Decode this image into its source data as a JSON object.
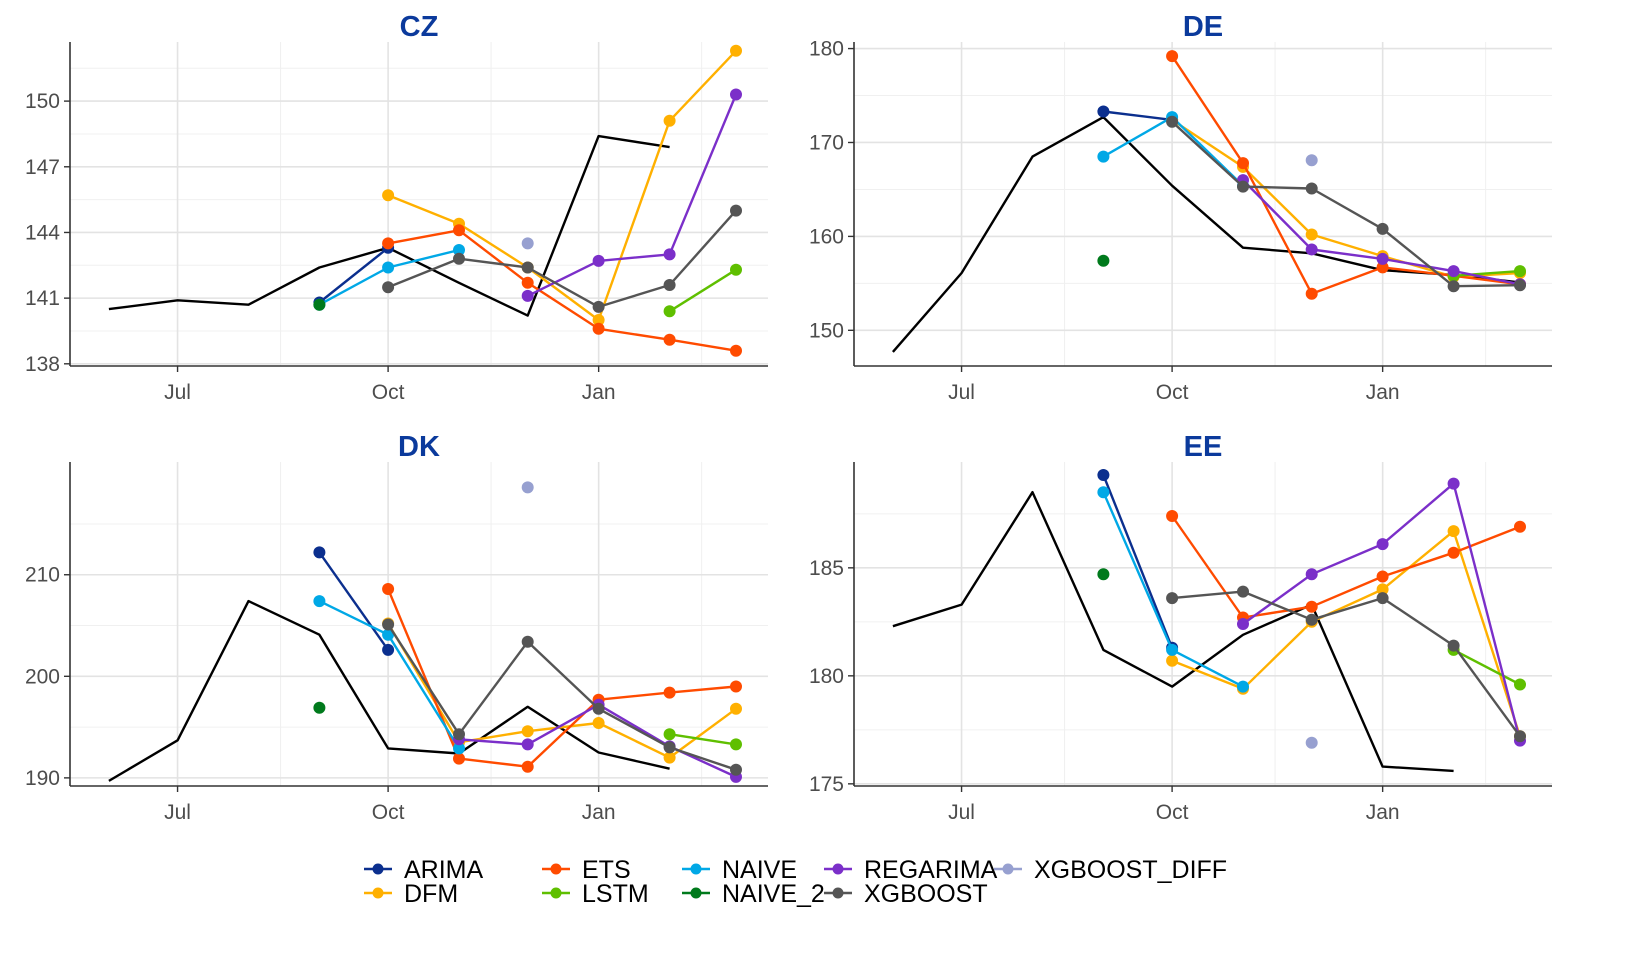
{
  "chart_data": {
    "type": "line",
    "x_axis": {
      "type": "date",
      "range": [
        "2023-05-15",
        "2024-03-15"
      ],
      "ticks": [
        {
          "date": "2023-07-01",
          "label": "Jul"
        },
        {
          "date": "2023-10-01",
          "label": "Oct"
        },
        {
          "date": "2024-01-01",
          "label": "Jan"
        }
      ]
    },
    "grid": true,
    "legend": {
      "position": "bottom",
      "entries": [
        {
          "name": "ARIMA",
          "color": "#0b2f8e"
        },
        {
          "name": "DFM",
          "color": "#ffb000"
        },
        {
          "name": "ETS",
          "color": "#ff4b00"
        },
        {
          "name": "LSTM",
          "color": "#5fbf00"
        },
        {
          "name": "NAIVE",
          "color": "#00a8e6"
        },
        {
          "name": "NAIVE_2",
          "color": "#007a1c"
        },
        {
          "name": "REGARIMA",
          "color": "#7b2fc9"
        },
        {
          "name": "XGBOOST",
          "color": "#555555"
        },
        {
          "name": "XGBOOST_DIFF",
          "color": "#97a0d0"
        }
      ]
    },
    "panels": [
      {
        "title": "CZ",
        "ylim": [
          137.9,
          152.7
        ],
        "yticks": [
          138,
          141,
          144,
          147,
          150
        ],
        "actual": {
          "color": "#000000",
          "x": [
            "2023-06-01",
            "2023-07-01",
            "2023-08-01",
            "2023-09-01",
            "2023-10-01",
            "2023-11-01",
            "2023-12-01",
            "2024-01-01",
            "2024-02-01"
          ],
          "y": [
            140.5,
            140.9,
            140.7,
            142.4,
            143.3,
            141.7,
            140.2,
            148.4,
            147.9
          ]
        },
        "series": [
          {
            "name": "ARIMA",
            "x": [
              "2023-09-01",
              "2023-10-01"
            ],
            "y": [
              140.8,
              143.3
            ]
          },
          {
            "name": "DFM",
            "x": [
              "2023-10-01",
              "2023-11-01",
              "2023-12-01",
              "2024-01-01",
              "2024-02-01",
              "2024-03-01"
            ],
            "y": [
              145.7,
              144.4,
              142.4,
              140.0,
              149.1,
              152.3
            ]
          },
          {
            "name": "ETS",
            "x": [
              "2023-10-01",
              "2023-11-01",
              "2023-12-01",
              "2024-01-01",
              "2024-02-01",
              "2024-03-01"
            ],
            "y": [
              143.5,
              144.1,
              141.7,
              139.6,
              139.1,
              138.6
            ]
          },
          {
            "name": "LSTM",
            "x": [
              "2024-02-01",
              "2024-03-01"
            ],
            "y": [
              140.4,
              142.3
            ]
          },
          {
            "name": "NAIVE",
            "x": [
              "2023-09-01",
              "2023-10-01",
              "2023-11-01"
            ],
            "y": [
              140.7,
              142.4,
              143.2
            ]
          },
          {
            "name": "NAIVE_2",
            "x": [
              "2023-09-01"
            ],
            "y": [
              140.7
            ]
          },
          {
            "name": "REGARIMA",
            "x": [
              "2023-12-01",
              "2024-01-01",
              "2024-02-01",
              "2024-03-01"
            ],
            "y": [
              141.1,
              142.7,
              143.0,
              150.3
            ]
          },
          {
            "name": "XGBOOST",
            "x": [
              "2023-10-01",
              "2023-11-01",
              "2023-12-01",
              "2024-01-01",
              "2024-02-01",
              "2024-03-01"
            ],
            "y": [
              141.5,
              142.8,
              142.4,
              140.6,
              141.6,
              145.0
            ]
          },
          {
            "name": "XGBOOST_DIFF",
            "x": [
              "2023-12-01"
            ],
            "y": [
              143.5
            ]
          }
        ]
      },
      {
        "title": "DE",
        "ylim": [
          146.2,
          180.7
        ],
        "yticks": [
          150,
          160,
          170,
          180
        ],
        "actual": {
          "color": "#000000",
          "x": [
            "2023-06-01",
            "2023-07-01",
            "2023-08-01",
            "2023-09-01",
            "2023-10-01",
            "2023-11-01",
            "2023-12-01",
            "2024-01-01",
            "2024-02-01",
            "2024-03-01"
          ],
          "y": [
            147.7,
            156.1,
            168.5,
            172.7,
            165.4,
            158.8,
            158.2,
            156.4,
            155.9,
            155.1
          ]
        },
        "series": [
          {
            "name": "ARIMA",
            "x": [
              "2023-09-01",
              "2023-10-01"
            ],
            "y": [
              173.3,
              172.4
            ]
          },
          {
            "name": "DFM",
            "x": [
              "2023-10-01",
              "2023-11-01",
              "2023-12-01",
              "2024-01-01",
              "2024-02-01",
              "2024-03-01"
            ],
            "y": [
              172.4,
              167.4,
              160.2,
              157.9,
              155.7,
              156.1
            ]
          },
          {
            "name": "ETS",
            "x": [
              "2023-10-01",
              "2023-11-01",
              "2023-12-01",
              "2024-01-01",
              "2024-02-01",
              "2024-03-01"
            ],
            "y": [
              179.2,
              167.8,
              153.9,
              156.7,
              155.8,
              154.9
            ]
          },
          {
            "name": "LSTM",
            "x": [
              "2024-02-01",
              "2024-03-01"
            ],
            "y": [
              155.8,
              156.3
            ]
          },
          {
            "name": "NAIVE",
            "x": [
              "2023-09-01",
              "2023-10-01",
              "2023-11-01"
            ],
            "y": [
              168.5,
              172.7,
              165.4
            ]
          },
          {
            "name": "NAIVE_2",
            "x": [
              "2023-09-01"
            ],
            "y": [
              157.4
            ]
          },
          {
            "name": "REGARIMA",
            "x": [
              "2023-11-01",
              "2023-12-01",
              "2024-01-01",
              "2024-02-01",
              "2024-03-01"
            ],
            "y": [
              166.0,
              158.6,
              157.6,
              156.3,
              154.9
            ]
          },
          {
            "name": "XGBOOST",
            "x": [
              "2023-10-01",
              "2023-11-01",
              "2023-12-01",
              "2024-01-01",
              "2024-02-01",
              "2024-03-01"
            ],
            "y": [
              172.2,
              165.3,
              165.1,
              160.8,
              154.7,
              154.8
            ]
          },
          {
            "name": "XGBOOST_DIFF",
            "x": [
              "2023-12-01"
            ],
            "y": [
              168.1
            ]
          }
        ]
      },
      {
        "title": "DK",
        "ylim": [
          189.2,
          221.1
        ],
        "yticks": [
          190,
          200,
          210
        ],
        "actual": {
          "color": "#000000",
          "x": [
            "2023-06-01",
            "2023-07-01",
            "2023-08-01",
            "2023-09-01",
            "2023-10-01",
            "2023-11-01",
            "2023-12-01",
            "2024-01-01",
            "2024-02-01"
          ],
          "y": [
            189.7,
            193.7,
            207.4,
            204.1,
            192.9,
            192.4,
            197.0,
            192.5,
            190.9
          ]
        },
        "series": [
          {
            "name": "ARIMA",
            "x": [
              "2023-09-01",
              "2023-10-01"
            ],
            "y": [
              212.2,
              202.6
            ]
          },
          {
            "name": "DFM",
            "x": [
              "2023-10-01",
              "2023-11-01",
              "2023-12-01",
              "2024-01-01",
              "2024-02-01",
              "2024-03-01"
            ],
            "y": [
              205.2,
              193.5,
              194.6,
              195.4,
              192.0,
              196.8
            ]
          },
          {
            "name": "ETS",
            "x": [
              "2023-10-01",
              "2023-11-01",
              "2023-12-01",
              "2024-01-01",
              "2024-02-01",
              "2024-03-01"
            ],
            "y": [
              208.6,
              191.9,
              191.1,
              197.7,
              198.4,
              199.0
            ]
          },
          {
            "name": "LSTM",
            "x": [
              "2024-02-01",
              "2024-03-01"
            ],
            "y": [
              194.3,
              193.3
            ]
          },
          {
            "name": "NAIVE",
            "x": [
              "2023-09-01",
              "2023-10-01",
              "2023-11-01"
            ],
            "y": [
              207.4,
              204.1,
              192.9
            ]
          },
          {
            "name": "NAIVE_2",
            "x": [
              "2023-09-01"
            ],
            "y": [
              196.9
            ]
          },
          {
            "name": "REGARIMA",
            "x": [
              "2023-11-01",
              "2023-12-01",
              "2024-01-01",
              "2024-02-01",
              "2024-03-01"
            ],
            "y": [
              193.8,
              193.3,
              197.2,
              193.1,
              190.1
            ]
          },
          {
            "name": "XGBOOST",
            "x": [
              "2023-10-01",
              "2023-11-01",
              "2023-12-01",
              "2024-01-01",
              "2024-02-01",
              "2024-03-01"
            ],
            "y": [
              205.1,
              194.3,
              203.4,
              196.8,
              193.0,
              190.8
            ]
          },
          {
            "name": "XGBOOST_DIFF",
            "x": [
              "2023-12-01"
            ],
            "y": [
              218.6
            ]
          }
        ]
      },
      {
        "title": "EE",
        "ylim": [
          174.9,
          189.9
        ],
        "yticks": [
          175,
          180,
          185
        ],
        "actual": {
          "color": "#000000",
          "x": [
            "2023-06-01",
            "2023-07-01",
            "2023-08-01",
            "2023-09-01",
            "2023-10-01",
            "2023-11-01",
            "2023-12-01",
            "2024-01-01",
            "2024-02-01"
          ],
          "y": [
            182.3,
            183.3,
            188.5,
            181.2,
            179.5,
            181.9,
            183.3,
            175.8,
            175.6
          ]
        },
        "series": [
          {
            "name": "ARIMA",
            "x": [
              "2023-09-01",
              "2023-10-01"
            ],
            "y": [
              189.3,
              181.3
            ]
          },
          {
            "name": "DFM",
            "x": [
              "2023-10-01",
              "2023-11-01",
              "2023-12-01",
              "2024-01-01",
              "2024-02-01",
              "2024-03-01"
            ],
            "y": [
              180.7,
              179.4,
              182.5,
              184.0,
              186.7,
              177.2
            ]
          },
          {
            "name": "ETS",
            "x": [
              "2023-10-01",
              "2023-11-01",
              "2023-12-01",
              "2024-01-01",
              "2024-02-01",
              "2024-03-01"
            ],
            "y": [
              187.4,
              182.7,
              183.2,
              184.6,
              185.7,
              186.9
            ]
          },
          {
            "name": "LSTM",
            "x": [
              "2024-02-01",
              "2024-03-01"
            ],
            "y": [
              181.2,
              179.6
            ]
          },
          {
            "name": "NAIVE",
            "x": [
              "2023-09-01",
              "2023-10-01",
              "2023-11-01"
            ],
            "y": [
              188.5,
              181.2,
              179.5
            ]
          },
          {
            "name": "NAIVE_2",
            "x": [
              "2023-09-01"
            ],
            "y": [
              184.7
            ]
          },
          {
            "name": "REGARIMA",
            "x": [
              "2023-11-01",
              "2023-12-01",
              "2024-01-01",
              "2024-02-01",
              "2024-03-01"
            ],
            "y": [
              182.4,
              184.7,
              186.1,
              188.9,
              177.0
            ]
          },
          {
            "name": "XGBOOST",
            "x": [
              "2023-10-01",
              "2023-11-01",
              "2023-12-01",
              "2024-01-01",
              "2024-02-01",
              "2024-03-01"
            ],
            "y": [
              183.6,
              183.9,
              182.6,
              183.6,
              181.4,
              177.2
            ]
          },
          {
            "name": "XGBOOST_DIFF",
            "x": [
              "2023-12-01"
            ],
            "y": [
              176.9
            ]
          }
        ]
      }
    ]
  }
}
